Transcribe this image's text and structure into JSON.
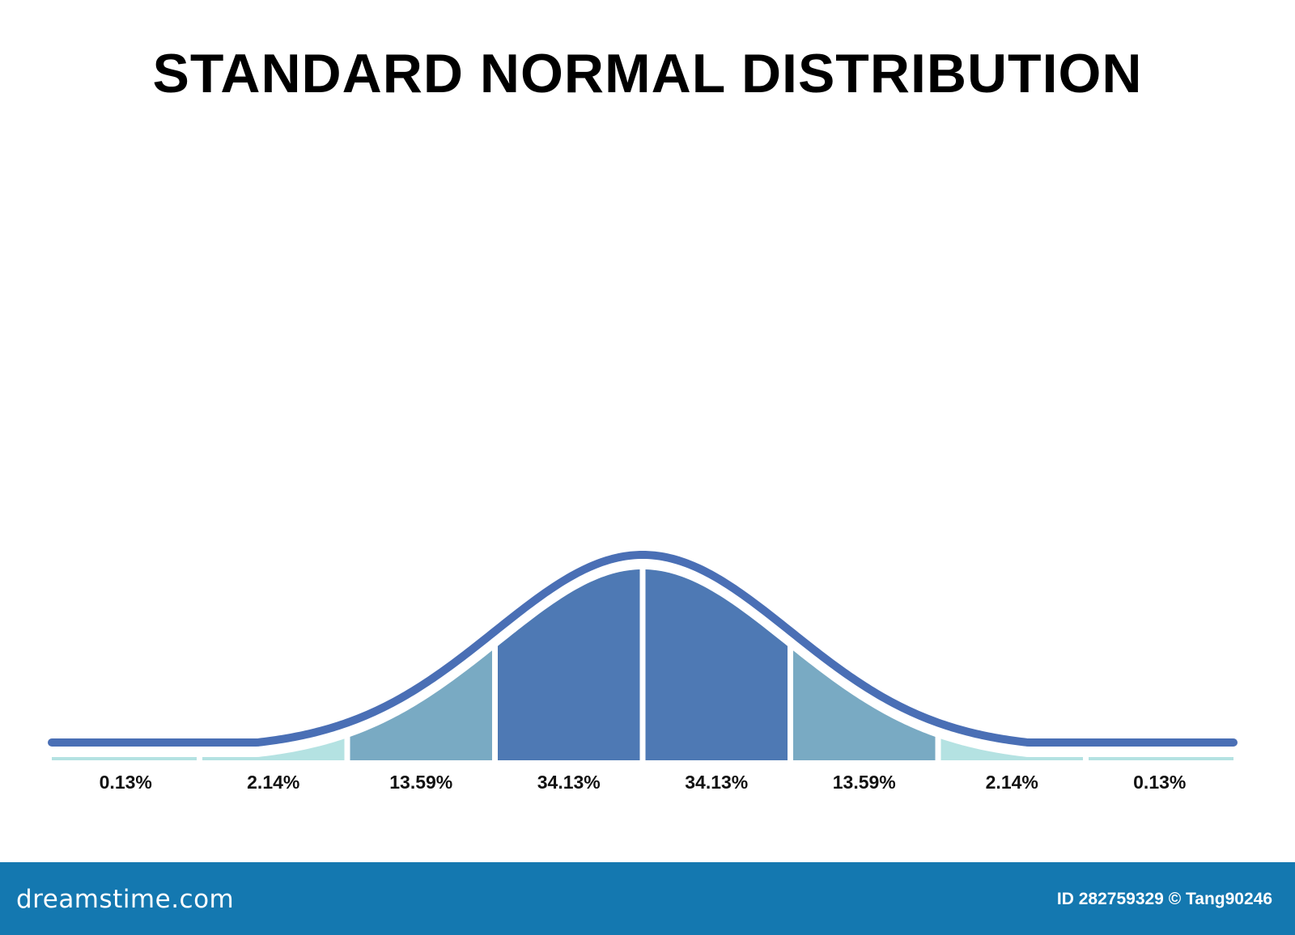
{
  "title": "STANDARD NORMAL DISTRIBUTION",
  "footer": {
    "brand": "dreamstime.com",
    "credit": "ID 282759329 © Tang90246"
  },
  "chart_data": {
    "type": "area",
    "title": "STANDARD NORMAL DISTRIBUTION",
    "xlabel": "",
    "ylabel": "",
    "xlim": [
      -4,
      4
    ],
    "grid": false,
    "segments": [
      {
        "from": -4,
        "to": -3,
        "label": "0.13%",
        "value": 0.13
      },
      {
        "from": -3,
        "to": -2,
        "label": "2.14%",
        "value": 2.14
      },
      {
        "from": -2,
        "to": -1,
        "label": "13.59%",
        "value": 13.59
      },
      {
        "from": -1,
        "to": 0,
        "label": "34.13%",
        "value": 34.13
      },
      {
        "from": 0,
        "to": 1,
        "label": "34.13%",
        "value": 34.13
      },
      {
        "from": 1,
        "to": 2,
        "label": "13.59%",
        "value": 13.59
      },
      {
        "from": 2,
        "to": 3,
        "label": "2.14%",
        "value": 2.14
      },
      {
        "from": 3,
        "to": 4,
        "label": "0.13%",
        "value": 0.13
      }
    ],
    "colors": {
      "curve": "#4a6fb5",
      "within_1sd": "#4e79b4",
      "within_2sd": "#79aac3",
      "within_3sd": "#b4e2e2",
      "tail": "#b4e2e2"
    }
  }
}
